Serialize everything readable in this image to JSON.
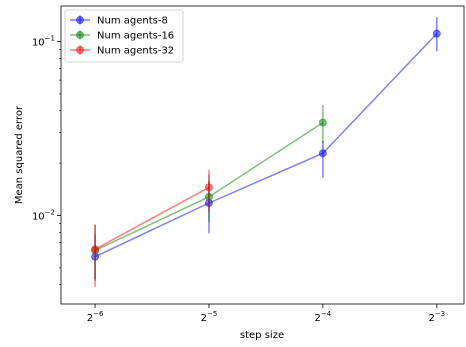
{
  "chart_data": {
    "type": "line",
    "xlabel": "step size",
    "ylabel": "Mean squared error",
    "xscale": "log2",
    "yscale": "log10",
    "xlim": [
      0.0127,
      0.1475
    ],
    "ylim": [
      0.0031,
      0.16
    ],
    "x_ticks": [
      {
        "value": 0.015625,
        "base": "2",
        "exp": "−6"
      },
      {
        "value": 0.03125,
        "base": "2",
        "exp": "−5"
      },
      {
        "value": 0.0625,
        "base": "2",
        "exp": "−4"
      },
      {
        "value": 0.125,
        "base": "2",
        "exp": "−3"
      }
    ],
    "y_ticks": [
      {
        "value": 0.01,
        "base": "10",
        "exp": "−2"
      },
      {
        "value": 0.1,
        "base": "10",
        "exp": "−1"
      }
    ],
    "grid": false,
    "legend_position": "top-left",
    "series": [
      {
        "name": "Num agents-8",
        "color": "#0000ff",
        "x": [
          0.015625,
          0.03125,
          0.0625,
          0.125
        ],
        "y": [
          0.0058,
          0.0118,
          0.0228,
          0.111
        ],
        "err_low": [
          0.0043,
          0.0079,
          0.0165,
          0.088
        ],
        "err_high": [
          0.0078,
          0.0158,
          0.0268,
          0.138
        ]
      },
      {
        "name": "Num agents-16",
        "color": "#008000",
        "x": [
          0.015625,
          0.03125,
          0.0625
        ],
        "y": [
          0.0063,
          0.0128,
          0.0342
        ],
        "err_low": [
          0.0042,
          0.0092,
          0.026
        ],
        "err_high": [
          0.0088,
          0.0172,
          0.0432
        ]
      },
      {
        "name": "Num agents-32",
        "color": "#ff0000",
        "x": [
          0.015625,
          0.03125
        ],
        "y": [
          0.0064,
          0.0145
        ],
        "err_low": [
          0.0039,
          0.0105
        ],
        "err_high": [
          0.0089,
          0.0183
        ]
      }
    ]
  }
}
